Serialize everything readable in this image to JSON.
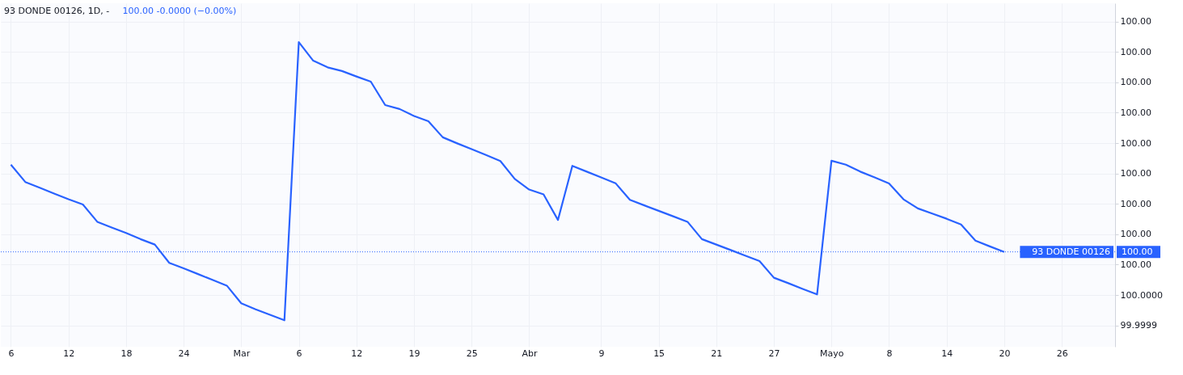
{
  "chart_data": {
    "type": "line",
    "title": "93 DONDE 00126, 1D, -",
    "subtitle": "100.00  -0.0000 (−0.00%)",
    "categories": [
      "6",
      null,
      null,
      null,
      "12",
      null,
      null,
      null,
      "18",
      null,
      null,
      null,
      "24",
      null,
      null,
      null,
      "Mar",
      null,
      null,
      null,
      "6",
      null,
      null,
      null,
      "12",
      null,
      null,
      null,
      "19",
      null,
      null,
      null,
      "25",
      null,
      null,
      null,
      "Abr",
      null,
      null,
      null,
      null,
      "9",
      null,
      null,
      null,
      "15",
      null,
      null,
      null,
      "21",
      null,
      null,
      null,
      "27",
      null,
      null,
      null,
      "Mayo",
      null,
      null,
      null,
      "8",
      null,
      null,
      null,
      "14",
      null,
      null,
      null,
      "20",
      null,
      null,
      null,
      "26",
      null,
      null,
      null
    ],
    "series": [
      {
        "color": "#2962ff",
        "values": [
          100.000429,
          100.000372,
          100.000353,
          100.000334,
          100.000315,
          100.000298,
          100.000241,
          100.000222,
          100.000204,
          100.000184,
          100.000166,
          100.000106,
          100.000088,
          100.000069,
          100.00005,
          100.000031,
          99.999973,
          99.999953,
          99.999935,
          99.999917,
          100.000832,
          100.000771,
          100.000749,
          100.000737,
          100.000719,
          100.000702,
          100.000625,
          100.000612,
          100.000589,
          100.000572,
          100.000519,
          100.000499,
          100.00048,
          100.000461,
          100.000441,
          100.000382,
          100.000347,
          100.000331,
          100.000247,
          100.000425,
          100.000406,
          100.000387,
          100.000368,
          100.000313,
          100.000295,
          100.000277,
          100.000259,
          100.000241,
          100.000184,
          100.000166,
          100.000148,
          100.00013,
          100.000112,
          100.000057,
          100.000039,
          100.00002,
          100.000002,
          100.000442,
          100.000429,
          100.000406,
          100.000387,
          100.000367,
          100.000315,
          100.000285,
          100.000268,
          100.000251,
          100.000232,
          100.000179,
          100.00016,
          100.000142,
          null,
          null,
          null,
          null,
          null,
          null,
          null
        ]
      }
    ],
    "ylim": [
      99.99983,
      100.00096
    ],
    "yticks": [
      {
        "value": 99.9999,
        "label": "99.9999"
      },
      {
        "value": 100.0,
        "label": "100.0000"
      },
      {
        "value": 100.0001,
        "label": "100.00"
      },
      {
        "value": 100.0002,
        "label": "100.00"
      },
      {
        "value": 100.0003,
        "label": "100.00"
      },
      {
        "value": 100.0004,
        "label": "100.00"
      },
      {
        "value": 100.0005,
        "label": "100.00"
      },
      {
        "value": 100.0006,
        "label": "100.00"
      },
      {
        "value": 100.0007,
        "label": "100.00"
      },
      {
        "value": 100.0008,
        "label": "100.00"
      },
      {
        "value": 100.0009,
        "label": "100.00"
      }
    ],
    "ref_lines": [
      {
        "axis": "y",
        "value": 100.000142,
        "label": "93 DONDE 00126",
        "color": "#2962ff",
        "line_style": "dotted"
      }
    ],
    "annotations": [
      "100.00"
    ],
    "grid": true,
    "marker": "none",
    "line_style": "solid"
  }
}
